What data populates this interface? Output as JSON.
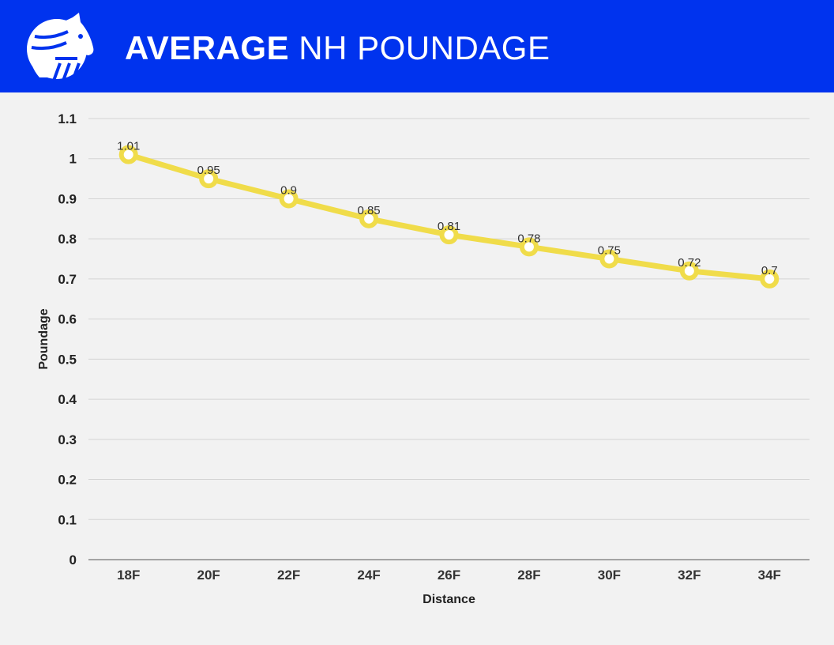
{
  "header": {
    "title_bold": "AVERAGE",
    "title_rest": "NH POUNDAGE",
    "background": "#0033ee",
    "logo": "horse-head-icon"
  },
  "chart_data": {
    "type": "line",
    "title": "AVERAGE NH POUNDAGE",
    "categories": [
      "18F",
      "20F",
      "22F",
      "24F",
      "26F",
      "28F",
      "30F",
      "32F",
      "34F"
    ],
    "values": [
      1.01,
      0.95,
      0.9,
      0.85,
      0.81,
      0.78,
      0.75,
      0.72,
      0.7
    ],
    "data_labels": [
      "1.01",
      "0.95",
      "0.9",
      "0.85",
      "0.81",
      "0.78",
      "0.75",
      "0.72",
      "0.7"
    ],
    "yticks": [
      "0",
      "0.1",
      "0.2",
      "0.3",
      "0.4",
      "0.5",
      "0.6",
      "0.7",
      "0.8",
      "0.9",
      "1",
      "1.1"
    ],
    "xlabel": "Distance",
    "ylabel": "Poundage",
    "ylim": [
      0,
      1.1
    ],
    "grid": true,
    "legend": "none",
    "line_color": "#f0dc4a",
    "marker_fill": "#ffffff"
  }
}
